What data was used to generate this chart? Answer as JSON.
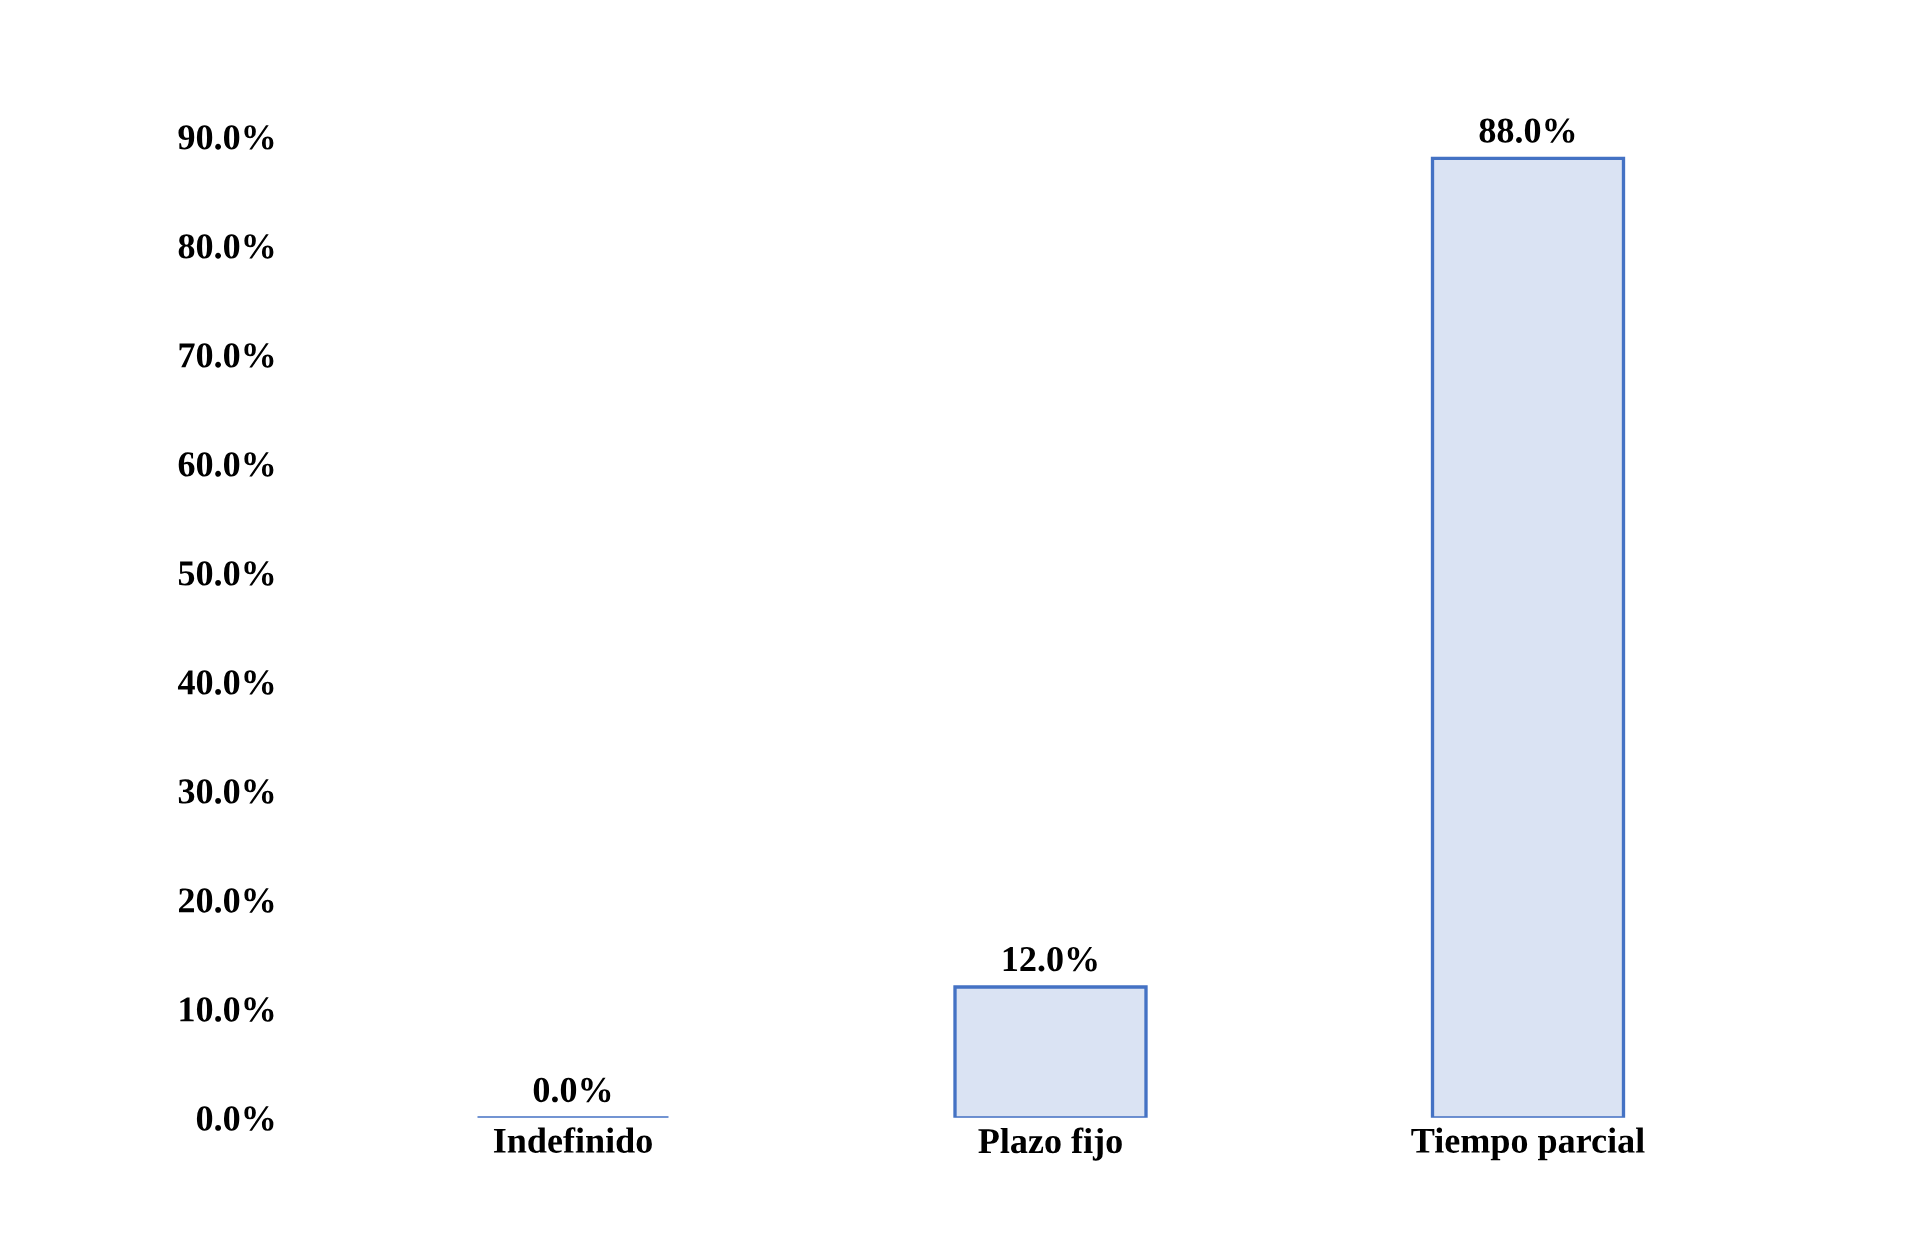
{
  "chart_data": {
    "type": "bar",
    "categories": [
      "Indefinido",
      "Plazo fijo",
      "Tiempo parcial"
    ],
    "values": [
      0.0,
      12.0,
      88.0
    ],
    "value_labels": [
      "0.0%",
      "12.0%",
      "88.0%"
    ],
    "color": "#4472c4",
    "ylim": [
      0,
      90
    ],
    "yticks": [
      {
        "value": 0,
        "label": "0.0%"
      },
      {
        "value": 10,
        "label": "10.0%"
      },
      {
        "value": 20,
        "label": "20.0%"
      },
      {
        "value": 30,
        "label": "30.0%"
      },
      {
        "value": 40,
        "label": "40.0%"
      },
      {
        "value": 50,
        "label": "50.0%"
      },
      {
        "value": 60,
        "label": "60.0%"
      },
      {
        "value": 70,
        "label": "70.0%"
      },
      {
        "value": 80,
        "label": "80.0%"
      },
      {
        "value": 90,
        "label": "90.0%"
      }
    ],
    "grid": false,
    "legend": false
  }
}
